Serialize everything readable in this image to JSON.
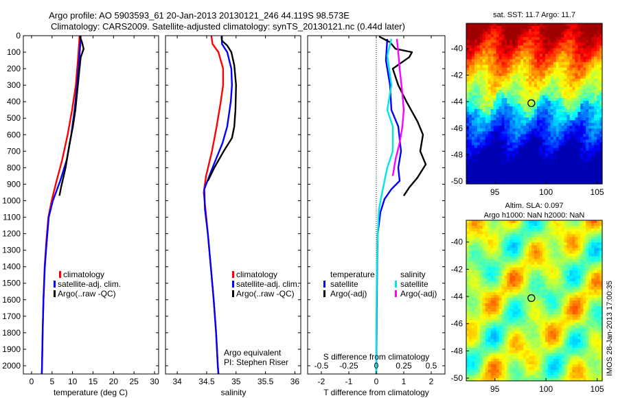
{
  "header": {
    "title_line1": "Argo profile: AO 5903593_61 20-Jan-2013 20130121_246 44.119S 98.573E",
    "title_line2": "Climatology: CARS2009. Satellite-adjusted climatology: synTS_20130121.nc (0.44d later)"
  },
  "colors": {
    "climatology": "#ff0000",
    "satellite": "#0000ff",
    "argo": "#000000",
    "satellite_salinity": "#00e5e5",
    "argo_adj_salinity": "#ff00ff"
  },
  "chart_data": [
    {
      "id": "temperature",
      "type": "line",
      "xlabel": "temperature (deg C)",
      "ylabel": "",
      "xlim": [
        -2,
        31
      ],
      "ylim": [
        2050,
        0
      ],
      "xticks": [
        0,
        5,
        10,
        15,
        20,
        25,
        30
      ],
      "yticks": [
        0,
        100,
        200,
        300,
        400,
        500,
        600,
        700,
        800,
        900,
        1000,
        1100,
        1200,
        1300,
        1400,
        1500,
        1600,
        1700,
        1800,
        1900,
        2000
      ],
      "legend": {
        "position": "lower-right",
        "entries": [
          "climatology",
          "satellite-adj. clim.",
          "Argo(..raw -QC)"
        ]
      },
      "series": [
        {
          "name": "climatology",
          "color": "#ff0000",
          "points": [
            [
              11.7,
              0
            ],
            [
              11.6,
              50
            ],
            [
              11.3,
              150
            ],
            [
              10.8,
              300
            ],
            [
              9.9,
              450
            ],
            [
              8.8,
              600
            ],
            [
              7.5,
              750
            ],
            [
              6.1,
              880
            ],
            [
              4.9,
              1000
            ],
            [
              4.1,
              1100
            ],
            [
              3.6,
              1250
            ],
            [
              3.2,
              1400
            ],
            [
              2.9,
              1600
            ],
            [
              2.7,
              1800
            ],
            [
              2.55,
              2000
            ],
            [
              2.5,
              2050
            ]
          ]
        },
        {
          "name": "satellite-adj. clim.",
          "color": "#0000ff",
          "points": [
            [
              12.0,
              0
            ],
            [
              11.9,
              50
            ],
            [
              11.6,
              150
            ],
            [
              11.1,
              300
            ],
            [
              10.5,
              450
            ],
            [
              9.7,
              600
            ],
            [
              8.6,
              750
            ],
            [
              7.0,
              880
            ],
            [
              5.2,
              1000
            ],
            [
              4.2,
              1100
            ],
            [
              3.7,
              1250
            ],
            [
              3.25,
              1400
            ],
            [
              2.9,
              1600
            ],
            [
              2.7,
              1800
            ],
            [
              2.55,
              2000
            ],
            [
              2.5,
              2050
            ]
          ]
        },
        {
          "name": "Argo(..raw -QC)",
          "color": "#000000",
          "points": [
            [
              11.8,
              5
            ],
            [
              12.3,
              40
            ],
            [
              12.7,
              80
            ],
            [
              12.0,
              130
            ],
            [
              11.7,
              200
            ],
            [
              11.3,
              300
            ],
            [
              10.7,
              450
            ],
            [
              10.1,
              550
            ],
            [
              9.3,
              650
            ],
            [
              8.3,
              800
            ],
            [
              7.2,
              920
            ],
            [
              6.8,
              970
            ]
          ]
        }
      ]
    },
    {
      "id": "salinity",
      "type": "line",
      "xlabel": "salinity",
      "ylabel": "",
      "xlim": [
        33.8,
        36.1
      ],
      "ylim": [
        2050,
        0
      ],
      "xticks": [
        34,
        34.5,
        35,
        35.5,
        36
      ],
      "yticks": [],
      "legend": {
        "position": "lower-right",
        "entries": [
          "climatology",
          "satellite-adj. clim.",
          "Argo(..raw -QC)"
        ]
      },
      "annotation": [
        "Argo equivalent",
        "PI: Stephen Riser"
      ],
      "series": [
        {
          "name": "climatology",
          "color": "#ff0000",
          "points": [
            [
              34.58,
              0
            ],
            [
              34.6,
              50
            ],
            [
              34.7,
              100
            ],
            [
              34.78,
              200
            ],
            [
              34.78,
              300
            ],
            [
              34.74,
              400
            ],
            [
              34.67,
              550
            ],
            [
              34.59,
              700
            ],
            [
              34.49,
              850
            ],
            [
              34.45,
              950
            ],
            [
              34.48,
              1050
            ],
            [
              34.52,
              1200
            ],
            [
              34.57,
              1400
            ],
            [
              34.62,
              1600
            ],
            [
              34.66,
              1800
            ],
            [
              34.69,
              2000
            ],
            [
              34.7,
              2050
            ]
          ]
        },
        {
          "name": "satellite-adj. clim.",
          "color": "#0000ff",
          "points": [
            [
              34.76,
              0
            ],
            [
              34.76,
              50
            ],
            [
              34.85,
              100
            ],
            [
              34.92,
              200
            ],
            [
              34.93,
              300
            ],
            [
              34.91,
              400
            ],
            [
              34.85,
              550
            ],
            [
              34.77,
              650
            ],
            [
              34.6,
              800
            ],
            [
              34.46,
              930
            ],
            [
              34.47,
              1050
            ],
            [
              34.52,
              1200
            ],
            [
              34.57,
              1400
            ],
            [
              34.62,
              1600
            ],
            [
              34.66,
              1800
            ],
            [
              34.69,
              2000
            ],
            [
              34.7,
              2050
            ]
          ]
        },
        {
          "name": "Argo(..raw -QC)",
          "color": "#000000",
          "points": [
            [
              34.75,
              5
            ],
            [
              34.76,
              30
            ],
            [
              34.85,
              60
            ],
            [
              34.92,
              100
            ],
            [
              34.97,
              180
            ],
            [
              35.0,
              300
            ],
            [
              34.99,
              450
            ],
            [
              34.97,
              550
            ],
            [
              34.93,
              620
            ],
            [
              34.79,
              700
            ],
            [
              34.63,
              800
            ],
            [
              34.52,
              880
            ]
          ]
        }
      ]
    },
    {
      "id": "difference",
      "type": "line",
      "xlabel": "T difference from climatology",
      "xlabel_top": "S difference from climatology",
      "xlim": [
        -2.5,
        2.5
      ],
      "ylim": [
        2050,
        0
      ],
      "xticks": [
        -2,
        -1,
        0,
        1,
        2
      ],
      "xticks_top": [
        "-0.5",
        "-0.25",
        "0",
        "0.25",
        "0.5"
      ],
      "yticks": [],
      "zero_line": true,
      "legend": {
        "position": "lower-center",
        "groups": [
          {
            "title": "temperature",
            "entries": [
              "satellite",
              "Argo(-adj)"
            ]
          },
          {
            "title": "salinity",
            "entries": [
              "satellite",
              "Argo(-adj)"
            ]
          }
        ]
      },
      "series": [
        {
          "name": "temperature satellite",
          "color": "#0000ff",
          "points": [
            [
              0.4,
              20
            ],
            [
              0.35,
              150
            ],
            [
              0.5,
              300
            ],
            [
              0.55,
              450
            ],
            [
              0.8,
              550
            ],
            [
              0.9,
              700
            ],
            [
              0.8,
              800
            ],
            [
              0.85,
              880
            ],
            [
              0.55,
              930
            ],
            [
              0.3,
              990
            ],
            [
              0.15,
              1070
            ],
            [
              0.05,
              1200
            ],
            [
              0.03,
              1400
            ],
            [
              0.02,
              1600
            ],
            [
              0.01,
              1800
            ],
            [
              0.0,
              2000
            ],
            [
              0.0,
              2050
            ]
          ]
        },
        {
          "name": "temperature Argo(-adj)",
          "color": "#000000",
          "points": [
            [
              0.1,
              5
            ],
            [
              0.5,
              40
            ],
            [
              0.7,
              80
            ],
            [
              1.3,
              100
            ],
            [
              1.2,
              130
            ],
            [
              0.6,
              200
            ],
            [
              0.8,
              300
            ],
            [
              1.1,
              400
            ],
            [
              1.5,
              520
            ],
            [
              1.7,
              600
            ],
            [
              1.6,
              700
            ],
            [
              1.8,
              780
            ],
            [
              1.5,
              860
            ],
            [
              1.2,
              920
            ],
            [
              1.0,
              970
            ]
          ]
        },
        {
          "name": "salinity satellite",
          "color": "#00e5e5",
          "points": [
            [
              0.55,
              20
            ],
            [
              0.4,
              120
            ],
            [
              0.55,
              300
            ],
            [
              0.4,
              450
            ],
            [
              0.6,
              550
            ],
            [
              0.6,
              700
            ],
            [
              0.4,
              800
            ],
            [
              0.3,
              880
            ],
            [
              0.2,
              960
            ],
            [
              0.1,
              1050
            ],
            [
              0.05,
              1200
            ],
            [
              0.02,
              1400
            ],
            [
              0.01,
              1600
            ],
            [
              0.0,
              1800
            ],
            [
              0.0,
              2050
            ]
          ]
        },
        {
          "name": "salinity Argo(-adj)",
          "color": "#ff00ff",
          "points": [
            [
              0.75,
              20
            ],
            [
              0.8,
              100
            ],
            [
              0.85,
              200
            ],
            [
              0.95,
              350
            ],
            [
              1.0,
              450
            ],
            [
              0.95,
              550
            ],
            [
              0.85,
              650
            ],
            [
              0.7,
              750
            ],
            [
              0.6,
              850
            ]
          ]
        }
      ]
    }
  ],
  "maps": [
    {
      "id": "sst",
      "title": "sat. SST: 11.7 Argo: 11.7",
      "xticks": [
        95,
        100,
        105
      ],
      "yticks": [
        -40,
        -42,
        -44,
        -46,
        -48,
        -50
      ],
      "xlim": [
        92.2,
        105.5
      ],
      "ylim": [
        -50.2,
        -38.1
      ],
      "marker": [
        98.57,
        -44.12
      ],
      "colormap": "jet",
      "value_range": [
        9.5,
        14.5
      ]
    },
    {
      "id": "sla",
      "title_line1": "Altim. SLA: 0.097",
      "title_line2": "Argo h1000: NaN h2000: NaN",
      "xticks": [
        95,
        100,
        105
      ],
      "yticks": [
        -40,
        -42,
        -44,
        -46,
        -48,
        -50
      ],
      "xlim": [
        92.2,
        105.5
      ],
      "ylim": [
        -50.2,
        -38.4
      ],
      "marker": [
        98.57,
        -44.12
      ],
      "colormap": "jet",
      "value_range": [
        -0.35,
        0.35
      ]
    }
  ],
  "side_label": "IMOS 28-Jan-2013 17:00:35"
}
